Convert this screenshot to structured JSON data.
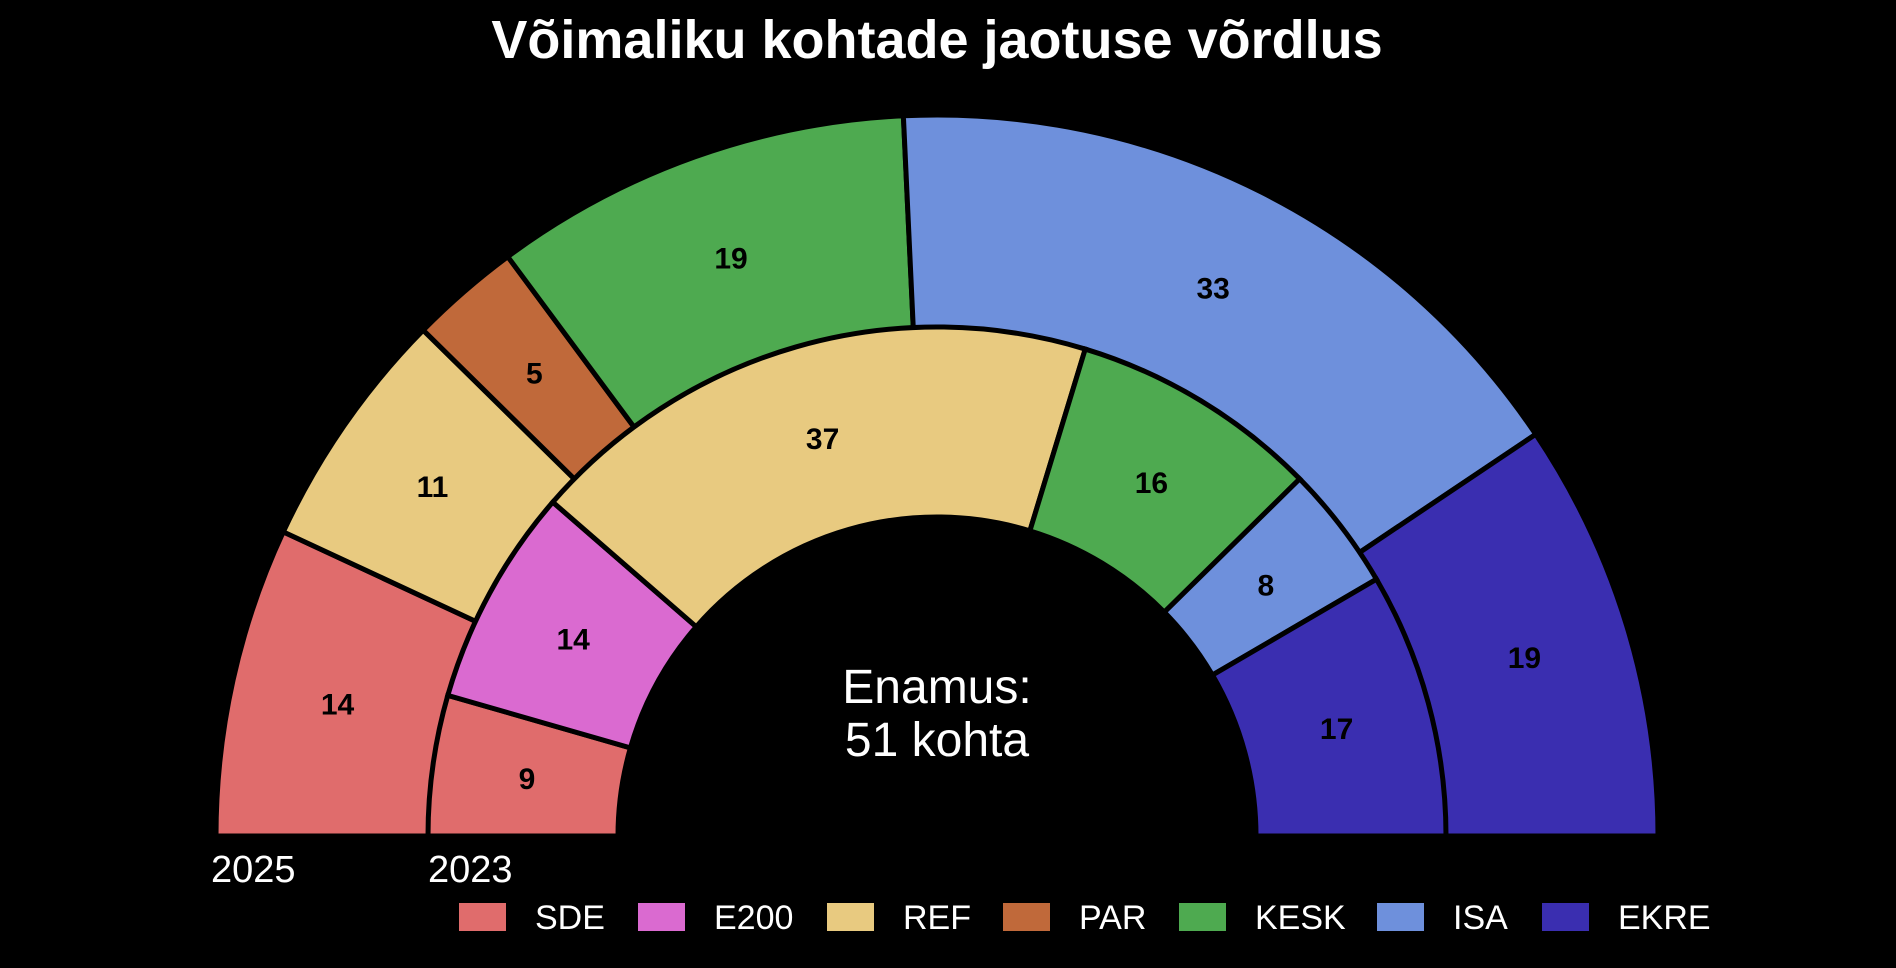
{
  "chart_data": {
    "type": "pie",
    "subtype": "nested-semicircle",
    "title": "Võimaliku kohtade jaotuse võrdlus",
    "center_label": [
      "Enamus:",
      "51 kohta"
    ],
    "parties": [
      "SDE",
      "E200",
      "REF",
      "PAR",
      "KESK",
      "ISA",
      "EKRE"
    ],
    "colors": {
      "SDE": "#E06C6C",
      "E200": "#DA6AD0",
      "REF": "#E8CA80",
      "PAR": "#C0693A",
      "KESK": "#4EAA50",
      "ISA": "#6E90DC",
      "EKRE": "#3A2EB0"
    },
    "series": [
      {
        "name": "2025",
        "ring": "outer",
        "values": [
          {
            "party": "SDE",
            "seats": 14
          },
          {
            "party": "REF",
            "seats": 11
          },
          {
            "party": "PAR",
            "seats": 5
          },
          {
            "party": "KESK",
            "seats": 19
          },
          {
            "party": "ISA",
            "seats": 33
          },
          {
            "party": "EKRE",
            "seats": 19
          }
        ]
      },
      {
        "name": "2023",
        "ring": "inner",
        "values": [
          {
            "party": "SDE",
            "seats": 9
          },
          {
            "party": "E200",
            "seats": 14
          },
          {
            "party": "REF",
            "seats": 37
          },
          {
            "party": "KESK",
            "seats": 16
          },
          {
            "party": "ISA",
            "seats": 8
          },
          {
            "party": "EKRE",
            "seats": 17
          }
        ]
      }
    ],
    "legend": [
      "SDE",
      "E200",
      "REF",
      "PAR",
      "KESK",
      "ISA",
      "EKRE"
    ],
    "legend_position": "bottom"
  }
}
